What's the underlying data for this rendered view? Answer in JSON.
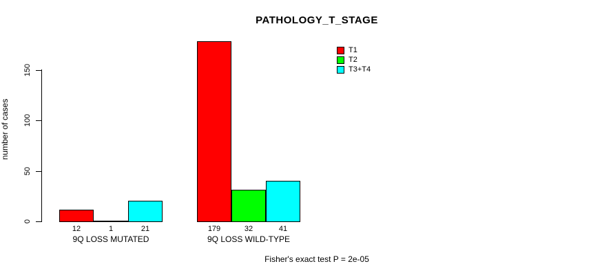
{
  "title": "PATHOLOGY_T_STAGE",
  "ylabel": "number of cases",
  "footer": "Fisher's exact test P = 2e-05",
  "legend": {
    "position": "top-right",
    "items": [
      {
        "label": "T1",
        "color": "#ff0000"
      },
      {
        "label": "T2",
        "color": "#00ff00"
      },
      {
        "label": "T3+T4",
        "color": "#00ffff"
      }
    ]
  },
  "chart_data": {
    "type": "bar",
    "title": "PATHOLOGY_T_STAGE",
    "xlabel": "",
    "ylabel": "number of cases",
    "categories": [
      "9Q LOSS MUTATED",
      "9Q LOSS WILD-TYPE"
    ],
    "series": [
      {
        "name": "T1",
        "color": "#ff0000",
        "values": [
          12,
          179
        ]
      },
      {
        "name": "T2",
        "color": "#00ff00",
        "values": [
          1,
          32
        ]
      },
      {
        "name": "T3+T4",
        "color": "#00ffff",
        "values": [
          21,
          41
        ]
      }
    ],
    "value_labels": [
      [
        12,
        1,
        21
      ],
      [
        179,
        32,
        41
      ]
    ],
    "ylim": [
      0,
      185
    ],
    "yticks": [
      0,
      50,
      100,
      150
    ],
    "grid": false,
    "legend_position": "top-right",
    "annotation": "Fisher's exact test P = 2e-05"
  }
}
